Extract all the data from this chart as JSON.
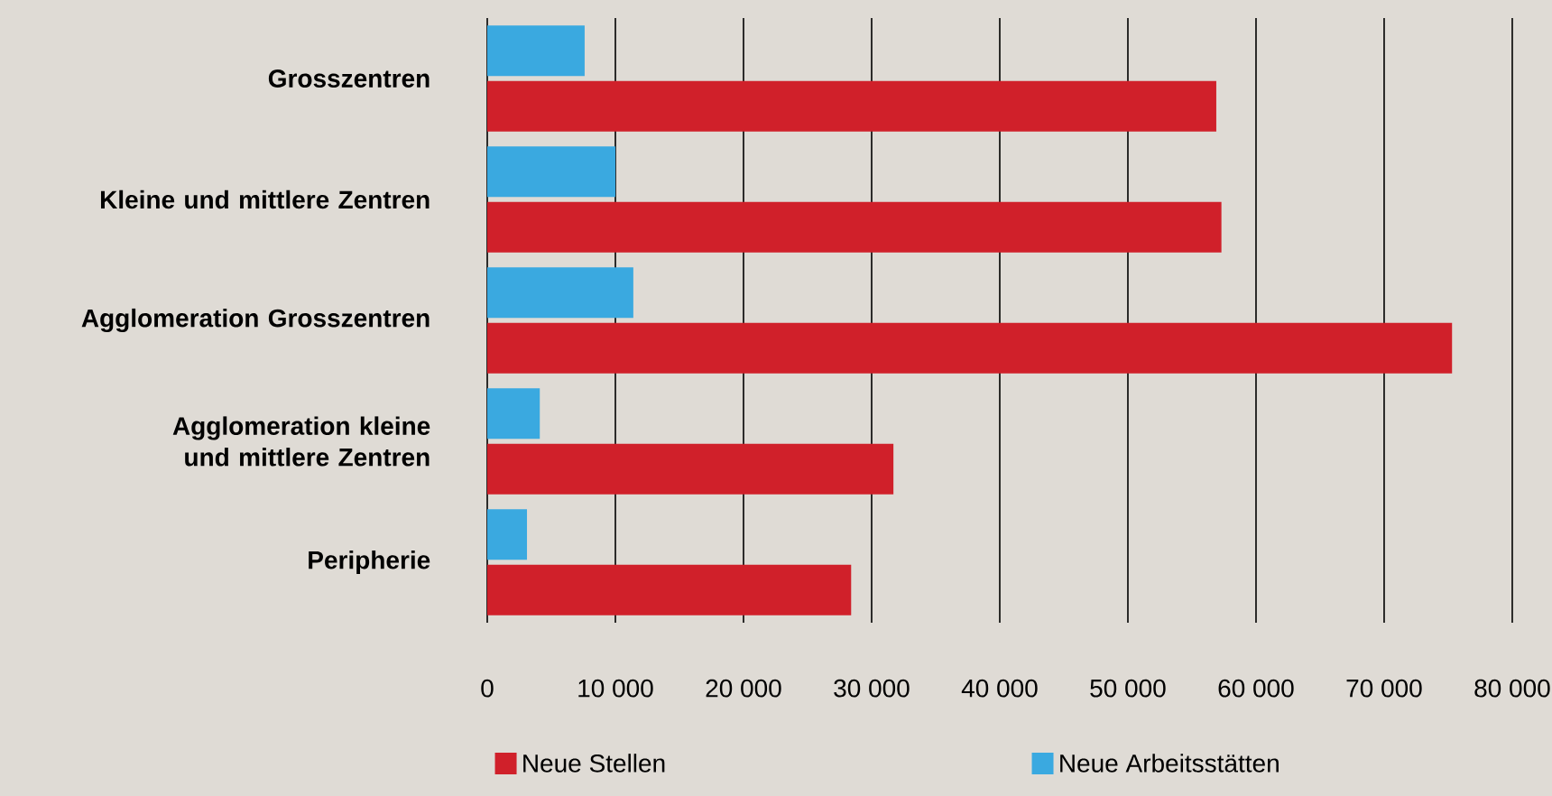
{
  "chart_data": {
    "type": "bar",
    "orientation": "horizontal",
    "categories": [
      "Grosszentren",
      "Kleine und mittlere Zentren",
      "Agglomeration Grosszentren",
      "Agglomeration kleine und mittlere Zentren",
      "Peripherie"
    ],
    "series": [
      {
        "name": "Neue Stellen",
        "color": "#d0202a",
        "values": [
          56900,
          57300,
          75300,
          31700,
          28400
        ]
      },
      {
        "name": "Neue Arbeitsstätten",
        "color": "#3aa9e0",
        "values": [
          7600,
          10000,
          11400,
          4100,
          3100
        ]
      }
    ],
    "xlim": [
      0,
      80000
    ],
    "xticks": [
      0,
      {
        "value": 10000,
        "label": "10 000"
      },
      {
        "value": 20000,
        "label": "20 000"
      },
      {
        "value": 30000,
        "label": "30 000"
      },
      {
        "value": 40000,
        "label": "40 000"
      },
      {
        "value": 50000,
        "label": "50 000"
      },
      {
        "value": 60000,
        "label": "60 000"
      },
      {
        "value": 70000,
        "label": "70 000"
      },
      {
        "value": 80000,
        "label": "80 000"
      }
    ],
    "grid": "x",
    "legend": "bottom"
  }
}
